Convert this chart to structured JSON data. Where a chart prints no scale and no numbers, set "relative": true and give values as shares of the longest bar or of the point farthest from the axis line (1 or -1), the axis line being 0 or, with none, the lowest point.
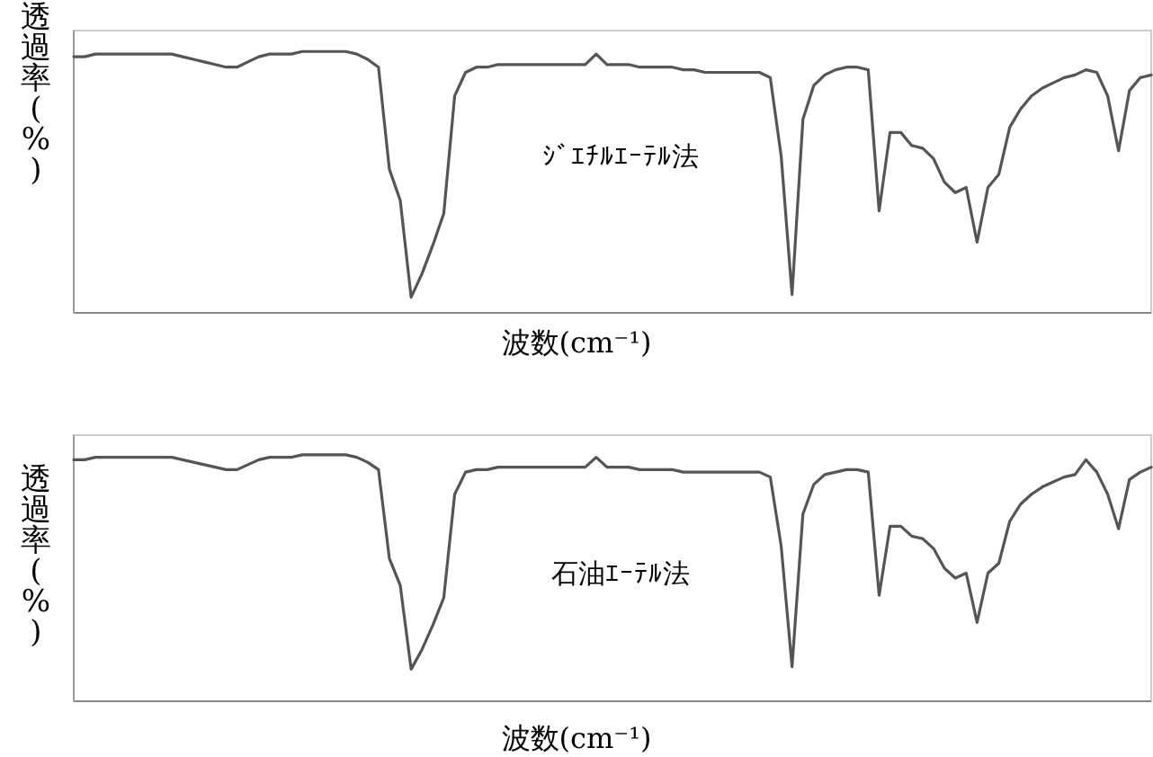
{
  "chart_data": [
    {
      "type": "line",
      "relative": true,
      "xlabel": "波数(cm⁻¹)",
      "ylabel": "透過率(%)",
      "annotations": [
        "ｼﾞｴﾁﾙｴｰﾃﾙ法"
      ],
      "categories": [
        null,
        null,
        null,
        null,
        null,
        null,
        null,
        null,
        null,
        null,
        null,
        null,
        null,
        null,
        null,
        null,
        null,
        null,
        null,
        null,
        null,
        null,
        null,
        null,
        null,
        null,
        null,
        null,
        null,
        null,
        null,
        null,
        null,
        null,
        null,
        null,
        null,
        null,
        null,
        null,
        null,
        null,
        null,
        null,
        null,
        null,
        null,
        null,
        null,
        null,
        null,
        null,
        null,
        null,
        null,
        null,
        null,
        null,
        null,
        null,
        null,
        null,
        null,
        null,
        null,
        null,
        null,
        null,
        null,
        null,
        null,
        null,
        null,
        null,
        null,
        null,
        null,
        null,
        null,
        null,
        null,
        null,
        null,
        null,
        null,
        null,
        null,
        null,
        null,
        null,
        null,
        null,
        null,
        null,
        null,
        null,
        null,
        null,
        null,
        null
      ],
      "series": [
        {
          "color": "#555555",
          "values": [
            0.98,
            0.98,
            0.99,
            0.99,
            0.99,
            0.99,
            0.99,
            0.99,
            0.99,
            0.99,
            0.98,
            0.97,
            0.96,
            0.95,
            0.94,
            0.94,
            0.96,
            0.98,
            0.99,
            0.99,
            0.99,
            1,
            1,
            1,
            1,
            1,
            0.99,
            0.97,
            0.94,
            0.55,
            0.43,
            0.06,
            0.15,
            0.26,
            0.38,
            0.83,
            0.92,
            0.94,
            0.94,
            0.95,
            0.95,
            0.95,
            0.95,
            0.95,
            0.95,
            0.95,
            0.95,
            0.95,
            0.99,
            0.95,
            0.95,
            0.95,
            0.94,
            0.94,
            0.94,
            0.94,
            0.93,
            0.93,
            0.92,
            0.92,
            0.92,
            0.92,
            0.92,
            0.92,
            0.9,
            0.6,
            0.07,
            0.74,
            0.87,
            0.91,
            0.93,
            0.94,
            0.94,
            0.93,
            0.39,
            0.69,
            0.69,
            0.64,
            0.63,
            0.59,
            0.5,
            0.46,
            0.48,
            0.27,
            0.48,
            0.53,
            0.71,
            0.78,
            0.83,
            0.86,
            0.88,
            0.9,
            0.91,
            0.93,
            0.92,
            0.83,
            0.62,
            0.85,
            0.9,
            0.91
          ]
        }
      ]
    },
    {
      "type": "line",
      "relative": true,
      "xlabel": "波数(cm⁻¹)",
      "ylabel": "透過率(%)",
      "annotations": [
        "石油ｴｰﾃﾙ法"
      ],
      "categories": [
        null,
        null,
        null,
        null,
        null,
        null,
        null,
        null,
        null,
        null,
        null,
        null,
        null,
        null,
        null,
        null,
        null,
        null,
        null,
        null,
        null,
        null,
        null,
        null,
        null,
        null,
        null,
        null,
        null,
        null,
        null,
        null,
        null,
        null,
        null,
        null,
        null,
        null,
        null,
        null,
        null,
        null,
        null,
        null,
        null,
        null,
        null,
        null,
        null,
        null,
        null,
        null,
        null,
        null,
        null,
        null,
        null,
        null,
        null,
        null,
        null,
        null,
        null,
        null,
        null,
        null,
        null,
        null,
        null,
        null,
        null,
        null,
        null,
        null,
        null,
        null,
        null,
        null,
        null,
        null,
        null,
        null,
        null,
        null,
        null,
        null,
        null,
        null,
        null,
        null,
        null,
        null,
        null,
        null,
        null,
        null,
        null,
        null,
        null,
        null
      ],
      "series": [
        {
          "color": "#555555",
          "values": [
            0.98,
            0.98,
            0.99,
            0.99,
            0.99,
            0.99,
            0.99,
            0.99,
            0.99,
            0.99,
            0.98,
            0.97,
            0.96,
            0.95,
            0.94,
            0.94,
            0.96,
            0.98,
            0.99,
            0.99,
            0.99,
            1,
            1,
            1,
            1,
            1,
            0.99,
            0.97,
            0.94,
            0.58,
            0.47,
            0.13,
            0.21,
            0.31,
            0.42,
            0.84,
            0.93,
            0.94,
            0.94,
            0.95,
            0.95,
            0.95,
            0.95,
            0.95,
            0.95,
            0.95,
            0.95,
            0.95,
            0.99,
            0.95,
            0.95,
            0.95,
            0.94,
            0.94,
            0.94,
            0.94,
            0.93,
            0.93,
            0.93,
            0.93,
            0.93,
            0.93,
            0.93,
            0.93,
            0.91,
            0.63,
            0.14,
            0.76,
            0.88,
            0.92,
            0.93,
            0.94,
            0.94,
            0.93,
            0.43,
            0.71,
            0.71,
            0.67,
            0.66,
            0.62,
            0.54,
            0.5,
            0.52,
            0.32,
            0.52,
            0.56,
            0.73,
            0.8,
            0.84,
            0.87,
            0.89,
            0.91,
            0.92,
            0.98,
            0.93,
            0.84,
            0.7,
            0.9,
            0.93,
            0.95
          ]
        }
      ]
    }
  ]
}
